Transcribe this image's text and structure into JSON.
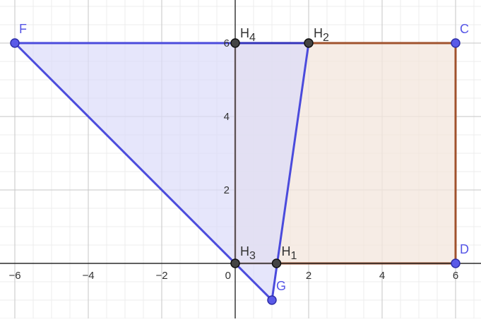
{
  "diagram": {
    "axes": {
      "x_ticks": [
        "−6",
        "−4",
        "−2",
        "0",
        "2",
        "4",
        "6"
      ],
      "y_ticks": [
        "2",
        "4",
        "6"
      ],
      "x_range": [
        -6.3,
        6.7
      ],
      "y_range": [
        -1.5,
        7.1
      ]
    },
    "colors": {
      "square_stroke": "#a0522d",
      "square_fill": "#f3e5dc",
      "triangle_stroke": "#4b4bdc",
      "triangle_fill": "#dcdcfa",
      "label_blue": "#5555e6",
      "label_dark": "#333333"
    },
    "points": [
      {
        "id": "F",
        "label": "F",
        "x": -6,
        "y": 6,
        "style": "blue"
      },
      {
        "id": "C",
        "label": "C",
        "x": 6,
        "y": 6,
        "style": "blue"
      },
      {
        "id": "D",
        "label": "D",
        "x": 6,
        "y": 0,
        "style": "blue"
      },
      {
        "id": "G",
        "label": "G",
        "x": 1,
        "y": -1,
        "style": "blue"
      },
      {
        "id": "H4",
        "label": "H",
        "sub": "4",
        "x": 0,
        "y": 6,
        "style": "dark"
      },
      {
        "id": "H2",
        "label": "H",
        "sub": "2",
        "x": 2,
        "y": 6,
        "style": "dark"
      },
      {
        "id": "H3",
        "label": "H",
        "sub": "3",
        "x": 0,
        "y": 0,
        "style": "dark"
      },
      {
        "id": "H1",
        "label": "H",
        "sub": "1",
        "x": 1.125,
        "y": 0,
        "style": "dark"
      }
    ],
    "square": [
      [
        0,
        0
      ],
      [
        6,
        0
      ],
      [
        6,
        6
      ],
      [
        0,
        6
      ]
    ],
    "triangle": [
      [
        -6,
        6
      ],
      [
        2,
        6
      ],
      [
        1,
        -1
      ]
    ]
  }
}
